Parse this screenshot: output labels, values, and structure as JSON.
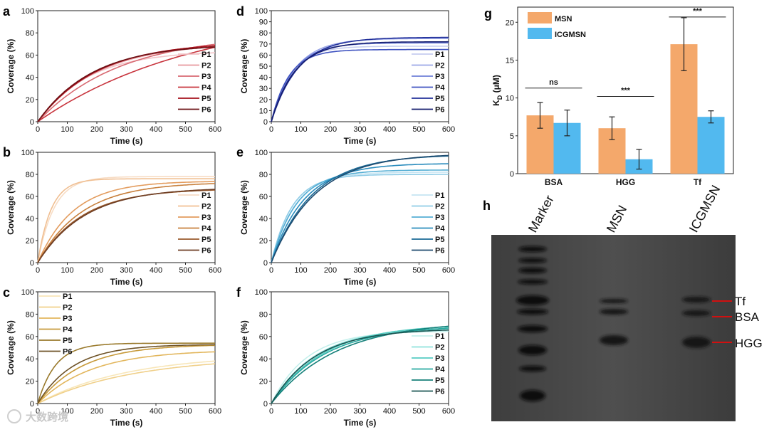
{
  "figure": {
    "panel_letters": [
      "a",
      "b",
      "c",
      "d",
      "e",
      "f",
      "g",
      "h"
    ],
    "watermark": "大数跨境"
  },
  "chart_data": [
    {
      "id": "a",
      "type": "line",
      "xlabel": "Time (s)",
      "ylabel": "Coverage (%)",
      "xlim": [
        0,
        600
      ],
      "ylim": [
        0,
        100
      ],
      "xticks": [
        0,
        100,
        200,
        300,
        400,
        500,
        600
      ],
      "yticks": [
        0,
        20,
        40,
        60,
        80,
        100
      ],
      "legend_position": "bottom-right",
      "series": [
        {
          "name": "P1",
          "color": "#f2c4c8",
          "plateau": 64,
          "tau": 170
        },
        {
          "name": "P2",
          "color": "#e8979d",
          "plateau": 71,
          "tau": 200
        },
        {
          "name": "P3",
          "color": "#d86a72",
          "plateau": 79,
          "tau": 280
        },
        {
          "name": "P4",
          "color": "#c8343d",
          "plateau": 100,
          "tau": 540
        },
        {
          "name": "P5",
          "color": "#a5101b",
          "plateau": 72,
          "tau": 200
        },
        {
          "name": "P6",
          "color": "#6b1014",
          "plateau": 70,
          "tau": 185
        }
      ]
    },
    {
      "id": "b",
      "type": "line",
      "xlabel": "Time (s)",
      "ylabel": "Coverage (%)",
      "xlim": [
        0,
        600
      ],
      "ylim": [
        0,
        100
      ],
      "xticks": [
        0,
        100,
        200,
        300,
        400,
        500,
        600
      ],
      "yticks": [
        0,
        20,
        40,
        60,
        80,
        100
      ],
      "legend_position": "bottom-right",
      "series": [
        {
          "name": "P1",
          "color": "#f7dcc4",
          "plateau": 78,
          "tau": 55
        },
        {
          "name": "P2",
          "color": "#f0bf92",
          "plateau": 76,
          "tau": 45
        },
        {
          "name": "P3",
          "color": "#e39c5e",
          "plateau": 74,
          "tau": 120
        },
        {
          "name": "P4",
          "color": "#c8803d",
          "plateau": 73,
          "tau": 150
        },
        {
          "name": "P5",
          "color": "#9a5a2b",
          "plateau": 67,
          "tau": 150
        },
        {
          "name": "P6",
          "color": "#6e3e24",
          "plateau": 68,
          "tau": 160
        }
      ]
    },
    {
      "id": "c",
      "type": "line",
      "xlabel": "Time (s)",
      "ylabel": "Coverage (%)",
      "xlim": [
        0,
        600
      ],
      "ylim": [
        0,
        100
      ],
      "xticks": [
        0,
        100,
        200,
        300,
        400,
        500,
        600
      ],
      "yticks": [
        0,
        20,
        40,
        60,
        80,
        100
      ],
      "legend_position": "top-left",
      "series": [
        {
          "name": "P1",
          "color": "#f8e6b8",
          "plateau": 44,
          "tau": 300
        },
        {
          "name": "P2",
          "color": "#f0d08a",
          "plateau": 42,
          "tau": 320
        },
        {
          "name": "P3",
          "color": "#e2b65c",
          "plateau": 48,
          "tau": 180
        },
        {
          "name": "P4",
          "color": "#c79a3a",
          "plateau": 53,
          "tau": 150
        },
        {
          "name": "P5",
          "color": "#9a7a2c",
          "plateau": 54,
          "tau": 60
        },
        {
          "name": "P6",
          "color": "#6e5226",
          "plateau": 53,
          "tau": 120
        }
      ]
    },
    {
      "id": "d",
      "type": "line",
      "xlabel": "Time (s)",
      "ylabel": "Coverage (%)",
      "xlim": [
        0,
        600
      ],
      "ylim": [
        0,
        100
      ],
      "xticks": [
        0,
        100,
        200,
        300,
        400,
        500,
        600
      ],
      "yticks": [
        0,
        10,
        20,
        30,
        40,
        50,
        60,
        70,
        80,
        90,
        100
      ],
      "legend_position": "bottom-right",
      "series": [
        {
          "name": "P1",
          "color": "#c6cdf0",
          "plateau": 68,
          "tau": 65
        },
        {
          "name": "P2",
          "color": "#9aa6e6",
          "plateau": 75,
          "tau": 80
        },
        {
          "name": "P3",
          "color": "#6f80d8",
          "plateau": 71,
          "tau": 72
        },
        {
          "name": "P4",
          "color": "#3f52c0",
          "plateau": 65,
          "tau": 60
        },
        {
          "name": "P5",
          "color": "#22309a",
          "plateau": 76,
          "tau": 90
        },
        {
          "name": "P6",
          "color": "#141c6e",
          "plateau": 72,
          "tau": 80
        }
      ]
    },
    {
      "id": "e",
      "type": "line",
      "xlabel": "Time (s)",
      "ylabel": "Coverage (%)",
      "xlim": [
        0,
        600
      ],
      "ylim": [
        0,
        100
      ],
      "xticks": [
        0,
        100,
        200,
        300,
        400,
        500,
        600
      ],
      "yticks": [
        0,
        20,
        40,
        60,
        80,
        100
      ],
      "legend_position": "bottom-right",
      "series": [
        {
          "name": "P1",
          "color": "#c4e4f2",
          "plateau": 82,
          "tau": 80
        },
        {
          "name": "P2",
          "color": "#8ecbe6",
          "plateau": 80,
          "tau": 70
        },
        {
          "name": "P3",
          "color": "#55aed4",
          "plateau": 84,
          "tau": 85
        },
        {
          "name": "P4",
          "color": "#2a8cbd",
          "plateau": 90,
          "tau": 110
        },
        {
          "name": "P5",
          "color": "#1a6a96",
          "plateau": 98,
          "tau": 140
        },
        {
          "name": "P6",
          "color": "#1e4a6e",
          "plateau": 99,
          "tau": 150
        }
      ]
    },
    {
      "id": "f",
      "type": "line",
      "xlabel": "Time (s)",
      "ylabel": "Coverage (%)",
      "xlim": [
        0,
        600
      ],
      "ylim": [
        0,
        100
      ],
      "xticks": [
        0,
        100,
        200,
        300,
        400,
        500,
        600
      ],
      "yticks": [
        0,
        20,
        40,
        60,
        80,
        100
      ],
      "legend_position": "bottom-right",
      "series": [
        {
          "name": "P1",
          "color": "#c4f0ec",
          "plateau": 65,
          "tau": 120
        },
        {
          "name": "P2",
          "color": "#8fe3dc",
          "plateau": 68,
          "tau": 150
        },
        {
          "name": "P3",
          "color": "#56ccc2",
          "plateau": 71,
          "tau": 175
        },
        {
          "name": "P4",
          "color": "#28aaa0",
          "plateau": 70,
          "tau": 180
        },
        {
          "name": "P5",
          "color": "#17807a",
          "plateau": 74,
          "tau": 220
        },
        {
          "name": "P6",
          "color": "#1a5552",
          "plateau": 67,
          "tau": 150
        }
      ]
    },
    {
      "id": "g",
      "type": "bar",
      "title": "",
      "xlabel": "",
      "ylabel": "K",
      "ylabel_subscript": "D",
      "ylabel_unit": "(μM)",
      "categories": [
        "BSA",
        "HGG",
        "Tf"
      ],
      "ylim": [
        0,
        22
      ],
      "yticks": [
        0,
        5,
        10,
        15,
        20
      ],
      "legend_position": "top-left",
      "series": [
        {
          "name": "MSN",
          "color": "#f4a86b",
          "values": [
            7.7,
            6.0,
            17.1
          ],
          "errors": [
            1.7,
            1.5,
            3.5
          ]
        },
        {
          "name": "ICGMSN",
          "color": "#52b9ef",
          "values": [
            6.7,
            1.9,
            7.5
          ],
          "errors": [
            1.7,
            1.3,
            0.8
          ]
        }
      ],
      "significance": [
        {
          "category": "BSA",
          "label": "ns",
          "level": 11.3
        },
        {
          "category": "HGG",
          "label": "***",
          "level": 10.2
        },
        {
          "category": "Tf",
          "label": "***",
          "level": 20.7
        }
      ]
    }
  ],
  "gel": {
    "id": "h",
    "lane_labels": [
      "Marker",
      "MSN",
      "ICGMSN"
    ],
    "band_labels": [
      "Tf",
      "BSA",
      "HGG"
    ],
    "marker_color": "#d01010"
  }
}
